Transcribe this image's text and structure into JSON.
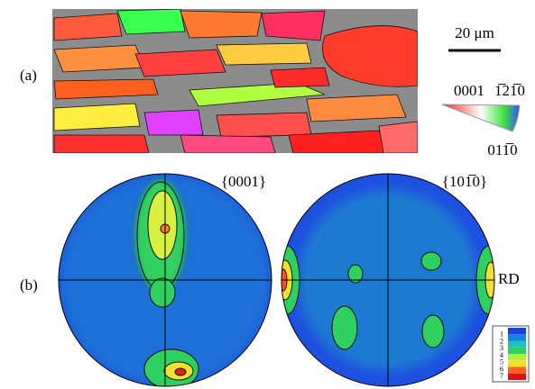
{
  "panel_a": {
    "label": "(a)",
    "scale_bar": "20 μm",
    "triangle": {
      "top_left": "0001",
      "top_right": "1̅21̅0",
      "bottom_right": "011̅0"
    }
  },
  "panel_b": {
    "label": "(b)",
    "pole_figures": [
      {
        "title": "{0001}"
      },
      {
        "title": "{101̅0}"
      }
    ],
    "direction": "RD",
    "legend": {
      "labels": [
        "1",
        "2",
        "3",
        "4",
        "5",
        "6",
        "7"
      ]
    }
  }
}
